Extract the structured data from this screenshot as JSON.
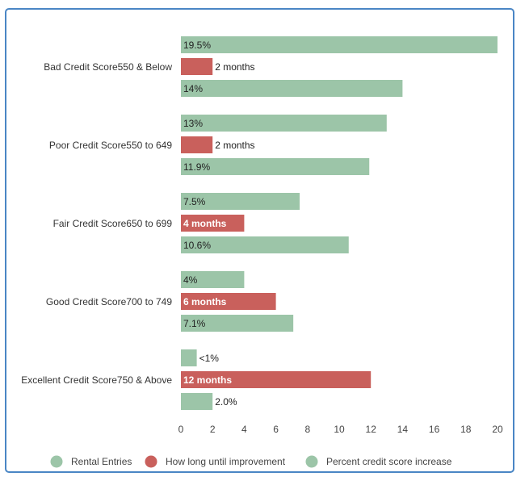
{
  "chart_data": {
    "type": "bar",
    "orientation": "horizontal",
    "categories": [
      "Bad Credit Score550 & Below",
      "Poor Credit Score550 to 649",
      "Fair Credit Score650 to 699",
      "Good Credit Score700 to 749",
      "Excellent Credit Score750 & Above"
    ],
    "series": [
      {
        "name": "Rental Entries",
        "color": "#9cc5a8",
        "values": [
          20,
          13,
          7.5,
          4,
          1
        ],
        "labels": [
          "19.5%",
          "13%",
          "7.5%",
          "4%",
          "<1%"
        ]
      },
      {
        "name": "How long until improvement",
        "color": "#c9605c",
        "values": [
          2,
          2,
          4,
          6,
          12
        ],
        "labels": [
          "2 months",
          "2 months",
          "4 months",
          "6 months",
          "12 months"
        ]
      },
      {
        "name": "Percent credit score increase",
        "color": "#9cc5a8",
        "values": [
          14,
          11.9,
          10.6,
          7.1,
          2
        ],
        "labels": [
          "14%",
          "11.9%",
          "10.6%",
          "7.1%",
          "2.0%"
        ]
      }
    ],
    "xlim": [
      0,
      20
    ],
    "xticks": [
      0,
      2,
      4,
      6,
      8,
      10,
      12,
      14,
      16,
      18,
      20
    ],
    "grid": false,
    "legend": "bottom"
  }
}
